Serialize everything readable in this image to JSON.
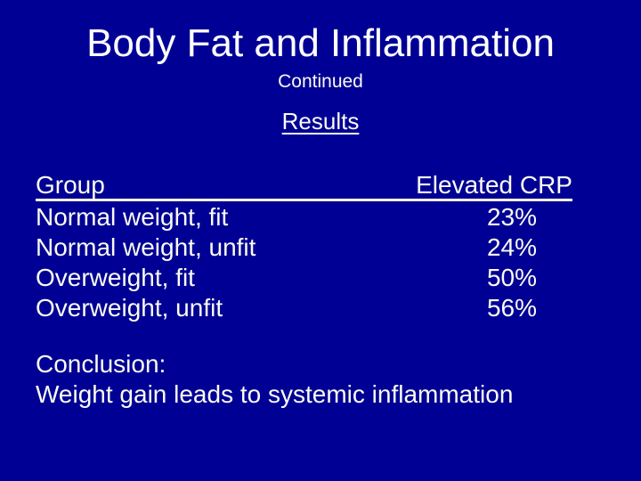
{
  "slide": {
    "title": "Body Fat and Inflammation",
    "subtitle": "Continued",
    "section_heading": "Results",
    "table": {
      "col1_header": "Group",
      "col2_header": "Elevated CRP",
      "rows": [
        {
          "group": "Normal weight, fit",
          "elevated_crp": "23%"
        },
        {
          "group": "Normal weight, unfit",
          "elevated_crp": "24%"
        },
        {
          "group": "Overweight, fit",
          "elevated_crp": "50%"
        },
        {
          "group": "Overweight, unfit",
          "elevated_crp": "56%"
        }
      ]
    },
    "conclusion_label": "Conclusion:",
    "conclusion_text": "Weight gain leads to systemic inflammation",
    "colors": {
      "background": "#000095",
      "title_text": "#FFFFFF",
      "body_text": "#FBFBF0",
      "underline": "#FBFBF0"
    }
  }
}
